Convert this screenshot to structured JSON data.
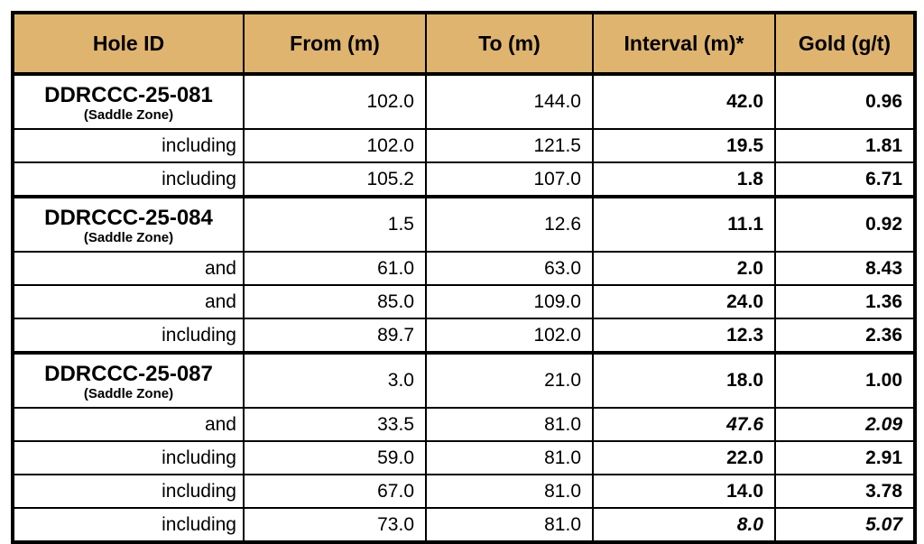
{
  "colors": {
    "header_bg": "#DFB46E",
    "border": "#000000",
    "text": "#000000",
    "row_bg": "#FFFFFF"
  },
  "table": {
    "columns": [
      "Hole ID",
      "From (m)",
      "To (m)",
      "Interval (m)*",
      "Gold (g/t)"
    ],
    "rows": [
      {
        "label": "DDRCCC-25-081",
        "zone": "(Saddle Zone)",
        "is_hole": true,
        "from": "102.0",
        "to": "144.0",
        "interval": "42.0",
        "gold": "0.96",
        "italic": false
      },
      {
        "label": "including",
        "zone": "",
        "is_hole": false,
        "from": "102.0",
        "to": "121.5",
        "interval": "19.5",
        "gold": "1.81",
        "italic": false
      },
      {
        "label": "including",
        "zone": "",
        "is_hole": false,
        "from": "105.2",
        "to": "107.0",
        "interval": "1.8",
        "gold": "6.71",
        "italic": false
      },
      {
        "label": "DDRCCC-25-084",
        "zone": "(Saddle Zone)",
        "is_hole": true,
        "from": "1.5",
        "to": "12.6",
        "interval": "11.1",
        "gold": "0.92",
        "italic": false
      },
      {
        "label": "and",
        "zone": "",
        "is_hole": false,
        "from": "61.0",
        "to": "63.0",
        "interval": "2.0",
        "gold": "8.43",
        "italic": false
      },
      {
        "label": "and",
        "zone": "",
        "is_hole": false,
        "from": "85.0",
        "to": "109.0",
        "interval": "24.0",
        "gold": "1.36",
        "italic": false
      },
      {
        "label": "including",
        "zone": "",
        "is_hole": false,
        "from": "89.7",
        "to": "102.0",
        "interval": "12.3",
        "gold": "2.36",
        "italic": false
      },
      {
        "label": "DDRCCC-25-087",
        "zone": "(Saddle Zone)",
        "is_hole": true,
        "from": "3.0",
        "to": "21.0",
        "interval": "18.0",
        "gold": "1.00",
        "italic": false
      },
      {
        "label": "and",
        "zone": "",
        "is_hole": false,
        "from": "33.5",
        "to": "81.0",
        "interval": "47.6",
        "gold": "2.09",
        "italic": true
      },
      {
        "label": "including",
        "zone": "",
        "is_hole": false,
        "from": "59.0",
        "to": "81.0",
        "interval": "22.0",
        "gold": "2.91",
        "italic": false
      },
      {
        "label": "including",
        "zone": "",
        "is_hole": false,
        "from": "67.0",
        "to": "81.0",
        "interval": "14.0",
        "gold": "3.78",
        "italic": false
      },
      {
        "label": "including",
        "zone": "",
        "is_hole": false,
        "from": "73.0",
        "to": "81.0",
        "interval": "8.0",
        "gold": "5.07",
        "italic": true
      }
    ]
  },
  "chart_data": {
    "type": "table",
    "columns": [
      "Hole ID",
      "From (m)",
      "To (m)",
      "Interval (m)*",
      "Gold (g/t)"
    ],
    "rows": [
      [
        "DDRCCC-25-081 (Saddle Zone)",
        102.0,
        144.0,
        42.0,
        0.96
      ],
      [
        "including",
        102.0,
        121.5,
        19.5,
        1.81
      ],
      [
        "including",
        105.2,
        107.0,
        1.8,
        6.71
      ],
      [
        "DDRCCC-25-084 (Saddle Zone)",
        1.5,
        12.6,
        11.1,
        0.92
      ],
      [
        "and",
        61.0,
        63.0,
        2.0,
        8.43
      ],
      [
        "and",
        85.0,
        109.0,
        24.0,
        1.36
      ],
      [
        "including",
        89.7,
        102.0,
        12.3,
        2.36
      ],
      [
        "DDRCCC-25-087 (Saddle Zone)",
        3.0,
        21.0,
        18.0,
        1.0
      ],
      [
        "and",
        33.5,
        81.0,
        47.6,
        2.09
      ],
      [
        "including",
        59.0,
        81.0,
        22.0,
        2.91
      ],
      [
        "including",
        67.0,
        81.0,
        14.0,
        3.78
      ],
      [
        "including",
        73.0,
        81.0,
        8.0,
        5.07
      ]
    ]
  }
}
